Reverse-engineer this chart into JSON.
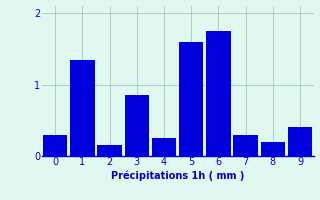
{
  "categories": [
    0,
    1,
    2,
    3,
    4,
    5,
    6,
    7,
    8,
    9
  ],
  "values": [
    0.3,
    1.35,
    0.15,
    0.85,
    0.25,
    1.6,
    1.75,
    0.3,
    0.2,
    0.4
  ],
  "bar_color": "#0000dd",
  "background_color": "#e0f8f0",
  "grid_color": "#99cccc",
  "xlabel": "Précipitations 1h ( mm )",
  "xlabel_color": "#0000cc",
  "tick_color": "#0000cc",
  "ylim": [
    0,
    2.1
  ],
  "yticks": [
    0,
    1,
    2
  ],
  "xlim": [
    -0.5,
    9.5
  ],
  "bar_width": 0.9,
  "figsize": [
    3.2,
    2.0
  ],
  "dpi": 100
}
